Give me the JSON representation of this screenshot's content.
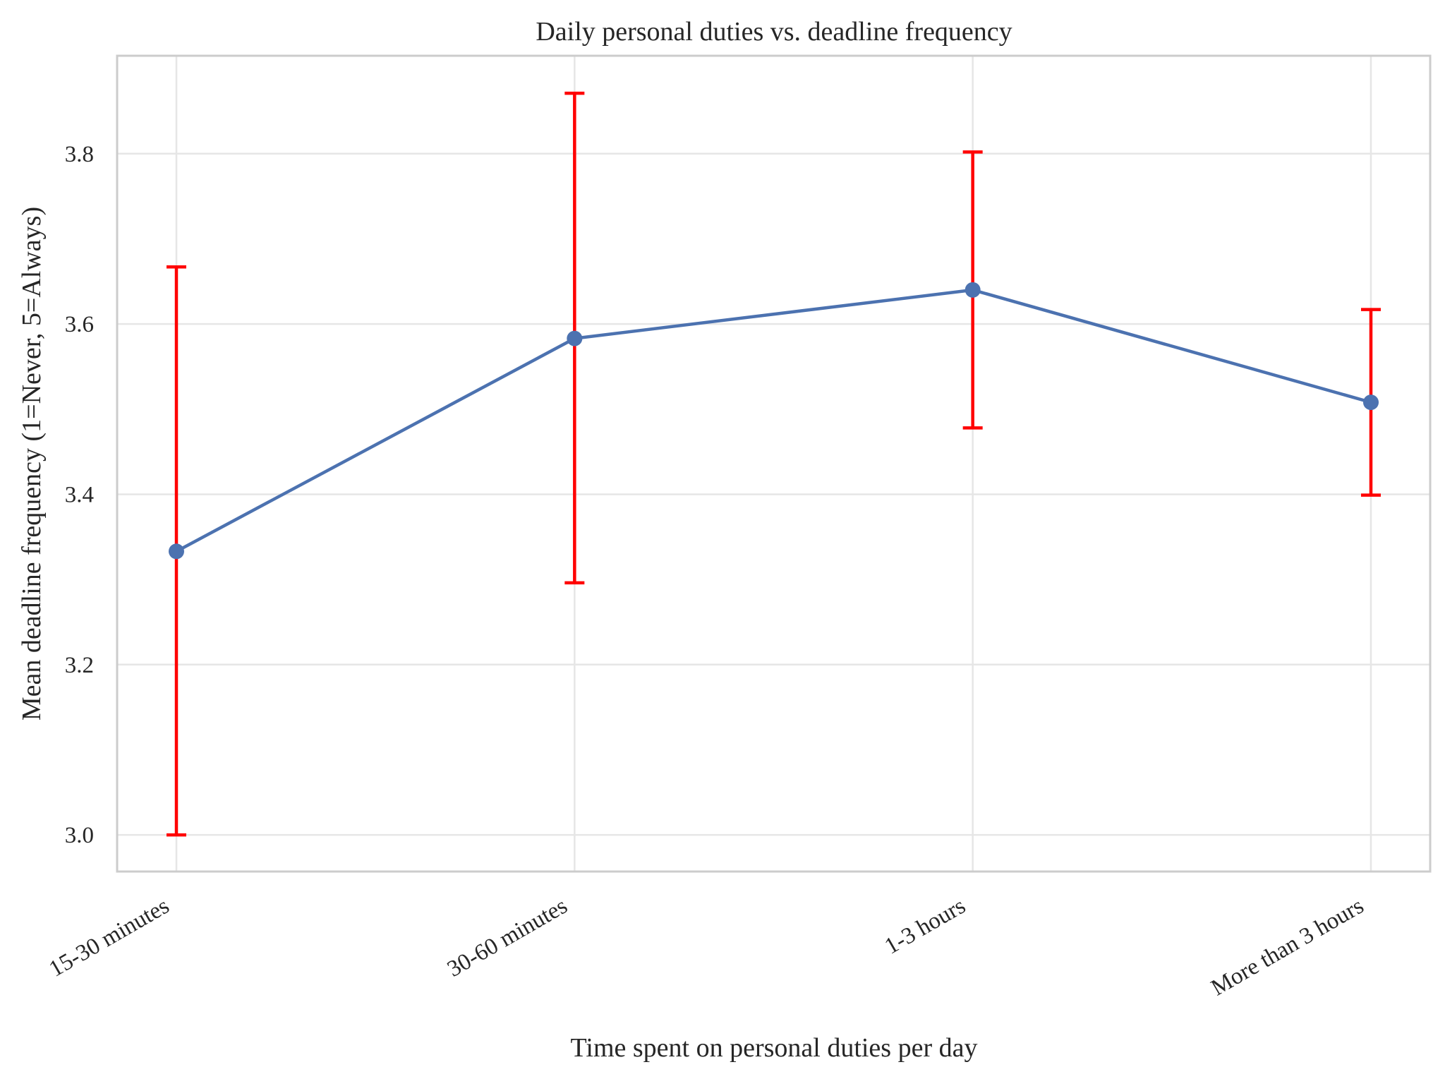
{
  "chart_data": {
    "type": "line",
    "title": "Daily personal duties vs. deadline frequency",
    "xlabel": "Time spent on personal duties per day",
    "ylabel": "Mean deadline frequency (1=Never, 5=Always)",
    "categories": [
      "15-30 minutes",
      "30-60 minutes",
      "1-3 hours",
      "More than 3 hours"
    ],
    "series": [
      {
        "values": [
          3.333,
          3.583,
          3.64,
          3.508
        ],
        "error_low": [
          3.0,
          3.296,
          3.478,
          3.399
        ],
        "error_high": [
          3.667,
          3.871,
          3.802,
          3.617
        ],
        "color": "#4c72b0",
        "error_color": "#ff0000",
        "marker": "circle"
      }
    ],
    "ylim": [
      2.957,
      3.915
    ],
    "yticks": [
      3.0,
      3.2,
      3.4,
      3.6,
      3.8
    ],
    "ytick_labels": [
      "3.0",
      "3.2",
      "3.4",
      "3.6",
      "3.8"
    ],
    "grid": true,
    "legend": false
  }
}
